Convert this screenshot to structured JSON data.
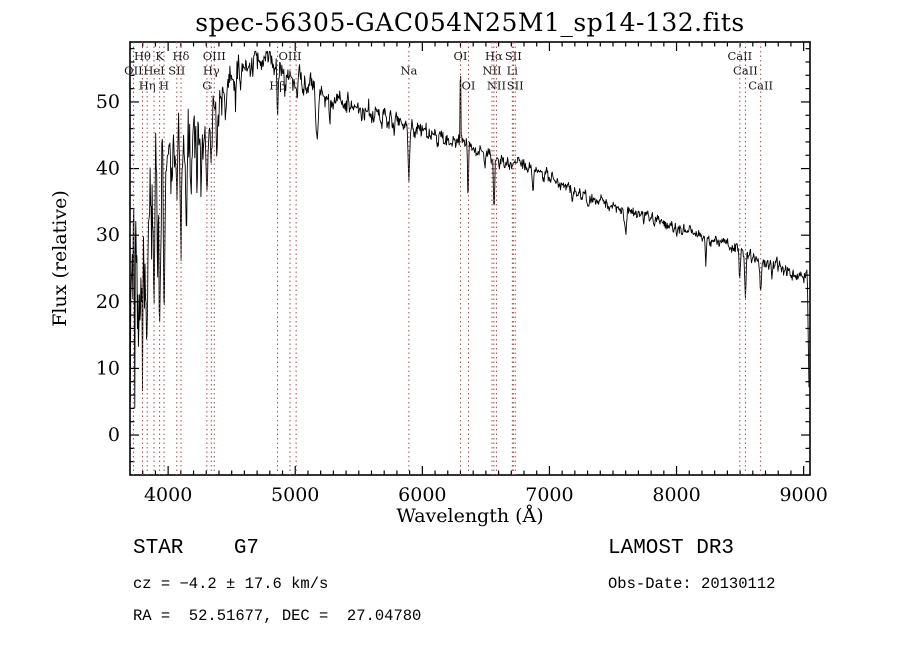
{
  "window": {
    "title": "spec-56305-GAC054N25M1_sp14-132.fits"
  },
  "chart_data": {
    "type": "line",
    "title": "spec-56305-GAC054N25M1_sp14-132.fits",
    "xlabel": "Wavelength (Å)",
    "ylabel": "Flux (relative)",
    "xlim": [
      3700,
      9050
    ],
    "ylim": [
      -6,
      59
    ],
    "xticks": [
      4000,
      5000,
      6000,
      7000,
      8000,
      9000
    ],
    "yticks": [
      0,
      10,
      20,
      30,
      40,
      50
    ],
    "x_minor_step": 100,
    "y_minor_step": 2,
    "grid": false,
    "line_color": "#000000",
    "marker_line_color": "#a34f4f",
    "line_label_color": "#1a1a1a",
    "spectral_lines": [
      {
        "wl": 3727,
        "label": "OII",
        "row": 2
      },
      {
        "wl": 3798,
        "label": "Hθ",
        "row": 1
      },
      {
        "wl": 3835,
        "label": "Hη",
        "row": 3
      },
      {
        "wl": 3889,
        "label": "HeI",
        "row": 2
      },
      {
        "wl": 3933,
        "label": "K",
        "row": 1
      },
      {
        "wl": 3968,
        "label": "H",
        "row": 3
      },
      {
        "wl": 4068,
        "label": "SII",
        "row": 2
      },
      {
        "wl": 4101,
        "label": "Hδ",
        "row": 1
      },
      {
        "wl": 4305,
        "label": "G",
        "row": 3
      },
      {
        "wl": 4340,
        "label": "Hγ",
        "row": 2
      },
      {
        "wl": 4363,
        "label": "OIII",
        "row": 1
      },
      {
        "wl": 4861,
        "label": "Hβ",
        "row": 3
      },
      {
        "wl": 4959,
        "label": "OIII",
        "row": 1
      },
      {
        "wl": 5007,
        "label": "",
        "row": 0
      },
      {
        "wl": 5894,
        "label": "Na",
        "row": 2
      },
      {
        "wl": 6300,
        "label": "OI",
        "row": 1
      },
      {
        "wl": 6363,
        "label": "OI",
        "row": 3
      },
      {
        "wl": 6548,
        "label": "NII",
        "row": 2
      },
      {
        "wl": 6563,
        "label": "Hα",
        "row": 1
      },
      {
        "wl": 6583,
        "label": "NII",
        "row": 3
      },
      {
        "wl": 6708,
        "label": "Li",
        "row": 2
      },
      {
        "wl": 6716,
        "label": "SII",
        "row": 1
      },
      {
        "wl": 6731,
        "label": "SII",
        "row": 3
      },
      {
        "wl": 8498,
        "label": "CaII",
        "row": 1
      },
      {
        "wl": 8542,
        "label": "CaII",
        "row": 2
      },
      {
        "wl": 8662,
        "label": "CaII",
        "row": 3
      }
    ],
    "spectrum": {
      "sample_step": 4,
      "noise_seed": 20130112,
      "continuum": [
        [
          3700,
          24
        ],
        [
          3740,
          27
        ],
        [
          3780,
          29
        ],
        [
          3820,
          31
        ],
        [
          3860,
          34
        ],
        [
          3900,
          36
        ],
        [
          3950,
          39
        ],
        [
          4000,
          42
        ],
        [
          4060,
          43.5
        ],
        [
          4120,
          44
        ],
        [
          4200,
          44.5
        ],
        [
          4300,
          46
        ],
        [
          4400,
          50
        ],
        [
          4500,
          53
        ],
        [
          4600,
          55
        ],
        [
          4700,
          56.3
        ],
        [
          4800,
          56.5
        ],
        [
          4900,
          54.5
        ],
        [
          5000,
          53.2
        ],
        [
          5100,
          52.2
        ],
        [
          5200,
          51
        ],
        [
          5300,
          50.3
        ],
        [
          5400,
          49.8
        ],
        [
          5500,
          49
        ],
        [
          5600,
          48.3
        ],
        [
          5700,
          47.6
        ],
        [
          5800,
          47
        ],
        [
          5900,
          46.3
        ],
        [
          6000,
          45.6
        ],
        [
          6100,
          44.9
        ],
        [
          6200,
          44.3
        ],
        [
          6300,
          43.8
        ],
        [
          6400,
          43.2
        ],
        [
          6500,
          42.3
        ],
        [
          6600,
          41.5
        ],
        [
          6700,
          41
        ],
        [
          6800,
          40.6
        ],
        [
          6900,
          39.6
        ],
        [
          7000,
          38.6
        ],
        [
          7100,
          37.6
        ],
        [
          7200,
          36.6
        ],
        [
          7300,
          35.8
        ],
        [
          7400,
          35.1
        ],
        [
          7500,
          34.4
        ],
        [
          7600,
          33.8
        ],
        [
          7700,
          33.1
        ],
        [
          7800,
          32.4
        ],
        [
          7900,
          31.6
        ],
        [
          8000,
          31
        ],
        [
          8100,
          30.4
        ],
        [
          8200,
          29.8
        ],
        [
          8300,
          29.1
        ],
        [
          8400,
          28.4
        ],
        [
          8500,
          27.7
        ],
        [
          8600,
          26.9
        ],
        [
          8700,
          26.1
        ],
        [
          8800,
          25.3
        ],
        [
          8900,
          24.4
        ],
        [
          9000,
          23.6
        ],
        [
          9050,
          23.2
        ]
      ],
      "noise_profile": [
        [
          3700,
          13
        ],
        [
          3780,
          13
        ],
        [
          3850,
          11
        ],
        [
          3920,
          9
        ],
        [
          4000,
          7
        ],
        [
          4100,
          5.5
        ],
        [
          4200,
          4.5
        ],
        [
          4300,
          3.5
        ],
        [
          4450,
          2.6
        ],
        [
          4600,
          2.2
        ],
        [
          4800,
          1.9
        ],
        [
          5000,
          1.7
        ],
        [
          5300,
          1.5
        ],
        [
          5600,
          1.3
        ],
        [
          6000,
          1.2
        ],
        [
          6500,
          1.0
        ],
        [
          7000,
          0.9
        ],
        [
          7500,
          0.85
        ],
        [
          8200,
          0.8
        ],
        [
          8700,
          0.9
        ],
        [
          9050,
          1.0
        ]
      ],
      "absorption": [
        [
          3703,
          22,
          5
        ],
        [
          3737,
          17,
          4
        ],
        [
          3770,
          14,
          4
        ],
        [
          3798,
          15,
          4
        ],
        [
          3835,
          20,
          5
        ],
        [
          3869,
          11,
          4
        ],
        [
          3889,
          16,
          4
        ],
        [
          3933,
          25,
          6
        ],
        [
          3968,
          23,
          6
        ],
        [
          4026,
          9,
          4
        ],
        [
          4068,
          8,
          4
        ],
        [
          4101,
          13,
          5
        ],
        [
          4144,
          7,
          4
        ],
        [
          4180,
          6,
          4
        ],
        [
          4227,
          8,
          4
        ],
        [
          4260,
          6,
          4
        ],
        [
          4305,
          10,
          7
        ],
        [
          4340,
          9,
          5
        ],
        [
          4383,
          7,
          4
        ],
        [
          4455,
          4.5,
          4
        ],
        [
          4531,
          3.5,
          4
        ],
        [
          4668,
          3.5,
          4
        ],
        [
          4861,
          6.5,
          5
        ],
        [
          4920,
          3,
          4
        ],
        [
          5015,
          2.5,
          4
        ],
        [
          5170,
          6.5,
          8
        ],
        [
          5270,
          3.5,
          5
        ],
        [
          5780,
          2,
          4
        ],
        [
          5894,
          8,
          6
        ],
        [
          6122,
          2,
          4
        ],
        [
          6360,
          7,
          4
        ],
        [
          6494,
          2.5,
          5
        ],
        [
          6563,
          7.5,
          5
        ],
        [
          6870,
          3.5,
          6
        ],
        [
          7180,
          2,
          5
        ],
        [
          7600,
          3,
          8
        ],
        [
          8230,
          3.5,
          5
        ],
        [
          8498,
          4.5,
          5
        ],
        [
          8542,
          6,
          6
        ],
        [
          8662,
          5.5,
          6
        ],
        [
          8750,
          2,
          5
        ]
      ],
      "emission": [
        [
          6300,
          13.5,
          2.5
        ],
        [
          5577,
          2.5,
          2
        ]
      ],
      "edge_drop": {
        "start": 9028,
        "end": 9045,
        "to": 4
      }
    }
  },
  "annotations": {
    "class_line": "STAR    G7",
    "cz_line": "cz = −4.2 ± 17.6 km/s",
    "radec_line": "RA =  52.51677, DEC =  27.04780",
    "survey_line": "LAMOST DR3",
    "obsdate_line": "Obs-Date: 20130112"
  }
}
